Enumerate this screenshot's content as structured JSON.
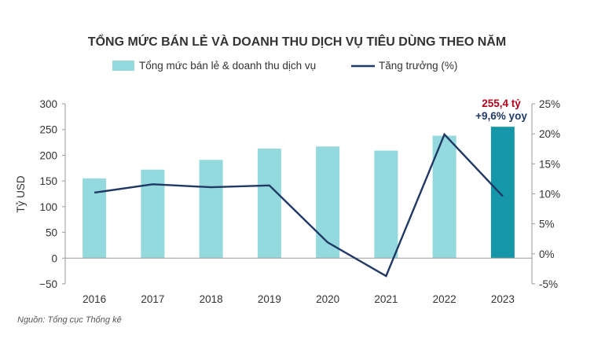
{
  "chart_data": {
    "type": "bar",
    "title": "TỔNG MỨC BÁN LẺ VÀ DOANH THU DỊCH VỤ TIÊU DÙNG THEO NĂM",
    "categories": [
      "2016",
      "2017",
      "2018",
      "2019",
      "2020",
      "2021",
      "2022",
      "2023"
    ],
    "ylabel": "Tỷ USD",
    "ylim": [
      -50,
      300
    ],
    "yticks": [
      "300",
      "250",
      "200",
      "150",
      "100",
      "50",
      "0",
      "−50"
    ],
    "y2lim": [
      -5,
      25
    ],
    "y2ticks": [
      "25%",
      "20%",
      "15%",
      "10%",
      "5%",
      "0%",
      "-5%"
    ],
    "grid": false,
    "legend_position": "top",
    "series": [
      {
        "name": "Tổng mức bán lẻ & doanh thu dịch vụ",
        "type": "bar",
        "axis": "left",
        "values": [
          155,
          172,
          191,
          213,
          217,
          209,
          238,
          255.4
        ],
        "color": "#94d9dd",
        "highlight_color": "#1597a9",
        "highlight_index": 7
      },
      {
        "name": "Tăng trưởng (%)",
        "type": "line",
        "axis": "right",
        "values": [
          10.2,
          11.6,
          11.1,
          11.4,
          1.9,
          -3.7,
          19.9,
          9.6
        ],
        "color": "#1f3864"
      }
    ],
    "annotation": {
      "value_text": "255,4 tỷ",
      "yoy_text": "+9,6% yoy",
      "value_color": "#b3001b",
      "yoy_color": "#1f3864"
    }
  },
  "source_note": "Nguồn: Tổng cục Thống kê"
}
